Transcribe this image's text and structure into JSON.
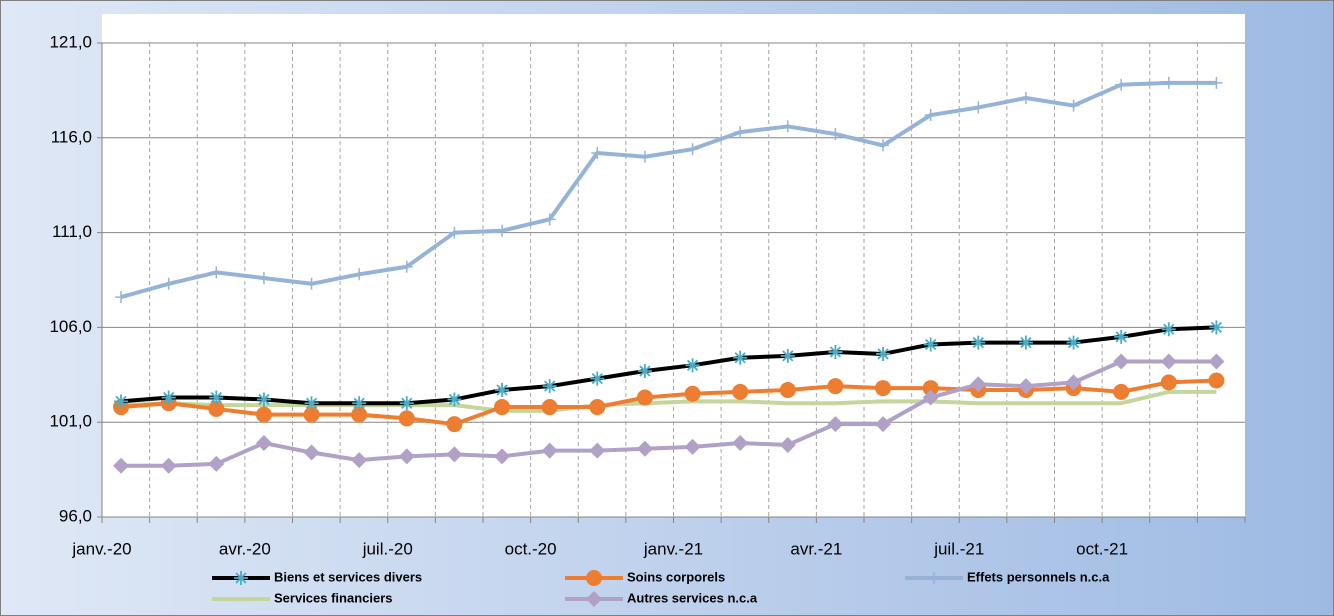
{
  "chart_data": {
    "type": "line",
    "categories": [
      "janv.-20",
      null,
      null,
      "avr.-20",
      null,
      null,
      "juil.-20",
      null,
      null,
      "oct.-20",
      null,
      null,
      "janv.-21",
      null,
      null,
      "avr.-21",
      null,
      null,
      "juil.-21",
      null,
      null,
      "oct.-21",
      null,
      null
    ],
    "ylim": [
      96,
      121
    ],
    "yticks": [
      {
        "value": 96,
        "label": "96,0"
      },
      {
        "value": 101,
        "label": "101,0"
      },
      {
        "value": 106,
        "label": "106,0"
      },
      {
        "value": 111,
        "label": "111,0"
      },
      {
        "value": 116,
        "label": "116,0"
      },
      {
        "value": 121,
        "label": "121,0"
      }
    ],
    "grid": true,
    "series": [
      {
        "name": "Biens et services divers",
        "color": "#000000",
        "marker": "asterisk",
        "values": [
          102.1,
          102.3,
          102.3,
          102.2,
          102.0,
          102.0,
          102.0,
          102.2,
          102.7,
          102.9,
          103.3,
          103.7,
          104.0,
          104.4,
          104.5,
          104.7,
          104.6,
          105.1,
          105.2,
          105.2,
          105.2,
          105.5,
          105.9,
          106.0
        ]
      },
      {
        "name": "Soins corporels",
        "color": "#ed7d31",
        "marker": "circle",
        "values": [
          101.8,
          102.0,
          101.7,
          101.4,
          101.4,
          101.4,
          101.2,
          100.9,
          101.8,
          101.8,
          101.8,
          102.3,
          102.5,
          102.6,
          102.7,
          102.9,
          102.8,
          102.8,
          102.7,
          102.7,
          102.8,
          102.6,
          103.1,
          103.2
        ]
      },
      {
        "name": "Effets personnels n.c.a",
        "color": "#95b3d7",
        "marker": "plus",
        "values": [
          107.6,
          108.3,
          108.9,
          108.6,
          108.3,
          108.8,
          109.2,
          111.0,
          111.1,
          111.7,
          115.2,
          115.0,
          115.4,
          116.3,
          116.6,
          116.2,
          115.6,
          117.2,
          117.6,
          118.1,
          117.7,
          118.8,
          118.9,
          118.9
        ]
      },
      {
        "name": "Services financiers",
        "color": "#c3d69b",
        "marker": "none",
        "values": [
          101.9,
          102.0,
          101.9,
          101.9,
          101.9,
          101.9,
          101.9,
          101.9,
          101.6,
          101.6,
          101.9,
          102.0,
          102.1,
          102.1,
          102.0,
          102.0,
          102.1,
          102.1,
          102.0,
          102.0,
          102.0,
          102.0,
          102.6,
          102.6
        ]
      },
      {
        "name": "Autres services n.c.a",
        "color": "#b2a1c7",
        "marker": "diamond",
        "values": [
          98.7,
          98.7,
          98.8,
          99.9,
          99.4,
          99.0,
          99.2,
          99.3,
          99.2,
          99.5,
          99.5,
          99.6,
          99.7,
          99.9,
          99.8,
          100.9,
          100.9,
          102.3,
          103.0,
          102.9,
          103.1,
          104.2,
          104.2,
          104.2
        ]
      }
    ]
  }
}
